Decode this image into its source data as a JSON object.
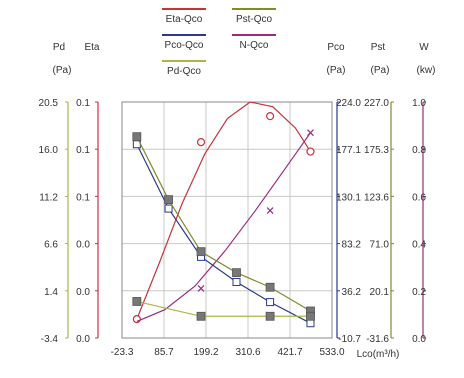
{
  "chart_data": {
    "type": "line",
    "legend_placement": "top-center",
    "legend": [
      {
        "label": "Eta-Qco",
        "color": "#c8323c"
      },
      {
        "label": "Pst-Qco",
        "color": "#7f8c2a"
      },
      {
        "label": "Pco-Qco",
        "color": "#2a3a8c"
      },
      {
        "label": "N-Qco",
        "color": "#9c2a7e"
      },
      {
        "label": "Pd-Qco",
        "color": "#a8b84a"
      }
    ],
    "xlabel": "Lco(m³/h)",
    "x_ticks": [
      "-23.3",
      "85.7",
      "199.2",
      "310.6",
      "421.7",
      "533.0"
    ],
    "xlim": [
      -23.3,
      533.0
    ],
    "grid": true,
    "axes": [
      {
        "key": "pd",
        "title": "Pd",
        "unit": "(Pa)",
        "color": "#a8b84a",
        "ticks": [
          "20.5",
          "16.0",
          "11.2",
          "6.6",
          "1.4",
          "-3.4"
        ],
        "ylim": [
          -3.4,
          20.5
        ]
      },
      {
        "key": "eta",
        "title": "Eta",
        "unit": "",
        "color": "#c8323c",
        "ticks": [
          "0.1",
          "0.1",
          "0.1",
          "0.0",
          "0.0",
          "0.0"
        ],
        "ylim": [
          0.0,
          0.1
        ]
      },
      {
        "key": "pco",
        "title": "Pco",
        "unit": "(Pa)",
        "color": "#2a3a8c",
        "ticks": [
          "224.0",
          "177.1",
          "130.1",
          "83.2",
          "36.2",
          "-10.7"
        ],
        "ylim": [
          -10.7,
          224.0
        ]
      },
      {
        "key": "pst",
        "title": "Pst",
        "unit": "(Pa)",
        "color": "#7f8c2a",
        "ticks": [
          "227.0",
          "175.3",
          "123.6",
          "71.0",
          "20.1",
          "-31.6"
        ],
        "ylim": [
          -31.6,
          227.0
        ]
      },
      {
        "key": "n",
        "title": "W",
        "unit": "(kw)",
        "color": "#9c2a7e",
        "ticks": [
          "1.0",
          "0.8",
          "0.6",
          "0.4",
          "0.2",
          "0.0"
        ],
        "ylim": [
          0.0,
          1.0
        ]
      }
    ],
    "series": [
      {
        "name": "Eta-Qco",
        "axis": "eta",
        "color": "#c8323c",
        "marker": "none",
        "x": [
          16,
          76,
          136,
          196,
          256,
          316,
          376,
          436,
          476
        ],
        "y": [
          0.008,
          0.032,
          0.057,
          0.078,
          0.093,
          0.1,
          0.098,
          0.089,
          0.079
        ]
      },
      {
        "name": "Eta-Qco points",
        "axis": "eta",
        "color": "#c8323c",
        "marker": "circle",
        "line": false,
        "x": [
          16,
          186,
          369,
          476
        ],
        "y": [
          0.008,
          0.083,
          0.094,
          0.079
        ]
      },
      {
        "name": "N-Qco",
        "axis": "n",
        "color": "#9c2a7e",
        "marker": "none",
        "x": [
          16,
          90,
          170,
          250,
          330,
          410,
          476
        ],
        "y": [
          0.07,
          0.12,
          0.22,
          0.37,
          0.54,
          0.72,
          0.87
        ]
      },
      {
        "name": "N-Qco points",
        "axis": "n",
        "color": "#9c2a7e",
        "marker": "x",
        "line": false,
        "x": [
          186,
          369,
          476
        ],
        "y": [
          0.21,
          0.54,
          0.87
        ]
      },
      {
        "name": "Pco-Qco",
        "axis": "pco",
        "color": "#2a3a8c",
        "marker": "square-open",
        "x": [
          16,
          100,
          186,
          280,
          369,
          476
        ],
        "y": [
          182,
          118,
          70,
          45,
          25,
          4
        ]
      },
      {
        "name": "Pst-Qco",
        "axis": "pst",
        "color": "#7f8c2a",
        "marker": "square",
        "x": [
          16,
          100,
          186,
          280,
          369,
          476
        ],
        "y": [
          189,
          120,
          63,
          40,
          24,
          -2
        ]
      },
      {
        "name": "Pd-Qco",
        "axis": "pd",
        "color": "#a8b84a",
        "marker": "square",
        "x": [
          16,
          186,
          369,
          476
        ],
        "y": [
          0.3,
          -1.2,
          -1.2,
          -1.2
        ]
      }
    ]
  }
}
